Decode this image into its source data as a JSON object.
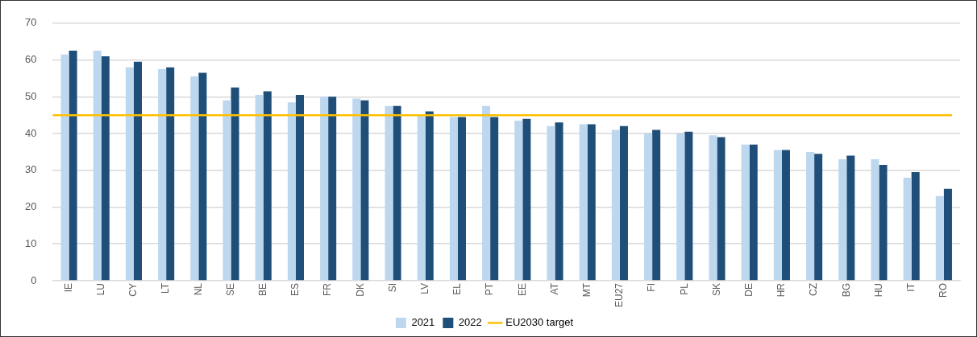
{
  "chart_data": {
    "type": "bar",
    "categories": [
      "IE",
      "LU",
      "CY",
      "LT",
      "NL",
      "SE",
      "BE",
      "ES",
      "FR",
      "DK",
      "SI",
      "LV",
      "EL",
      "PT",
      "EE",
      "AT",
      "MT",
      "EU27",
      "FI",
      "PL",
      "SK",
      "DE",
      "HR",
      "CZ",
      "BG",
      "HU",
      "IT",
      "RO"
    ],
    "series": [
      {
        "name": "2021",
        "color": "#bdd7ee",
        "values": [
          61.5,
          62.5,
          58,
          57.5,
          55.5,
          49,
          50.5,
          48.5,
          50,
          49.5,
          47.5,
          45,
          44.5,
          47.5,
          43.5,
          42,
          42.5,
          41,
          40,
          40,
          39.5,
          37,
          35.5,
          35,
          33,
          33,
          28,
          23
        ]
      },
      {
        "name": "2022",
        "color": "#1f4e79",
        "values": [
          62.5,
          61,
          59.5,
          58,
          56.5,
          52.5,
          51.5,
          50.5,
          50,
          49,
          47.5,
          46,
          44.5,
          44.5,
          44,
          43,
          42.5,
          42,
          41,
          40.5,
          39,
          37,
          35.5,
          34.5,
          34,
          31.5,
          29.5,
          25
        ]
      }
    ],
    "ylim": [
      0,
      70
    ],
    "yticks": [
      0,
      10,
      20,
      30,
      40,
      50,
      60,
      70
    ],
    "grid": "y",
    "legend": "bottom",
    "ref_lines": [
      {
        "axis": "y",
        "value": 45,
        "label": "EU2030 target",
        "color": "#ffc000"
      }
    ]
  }
}
